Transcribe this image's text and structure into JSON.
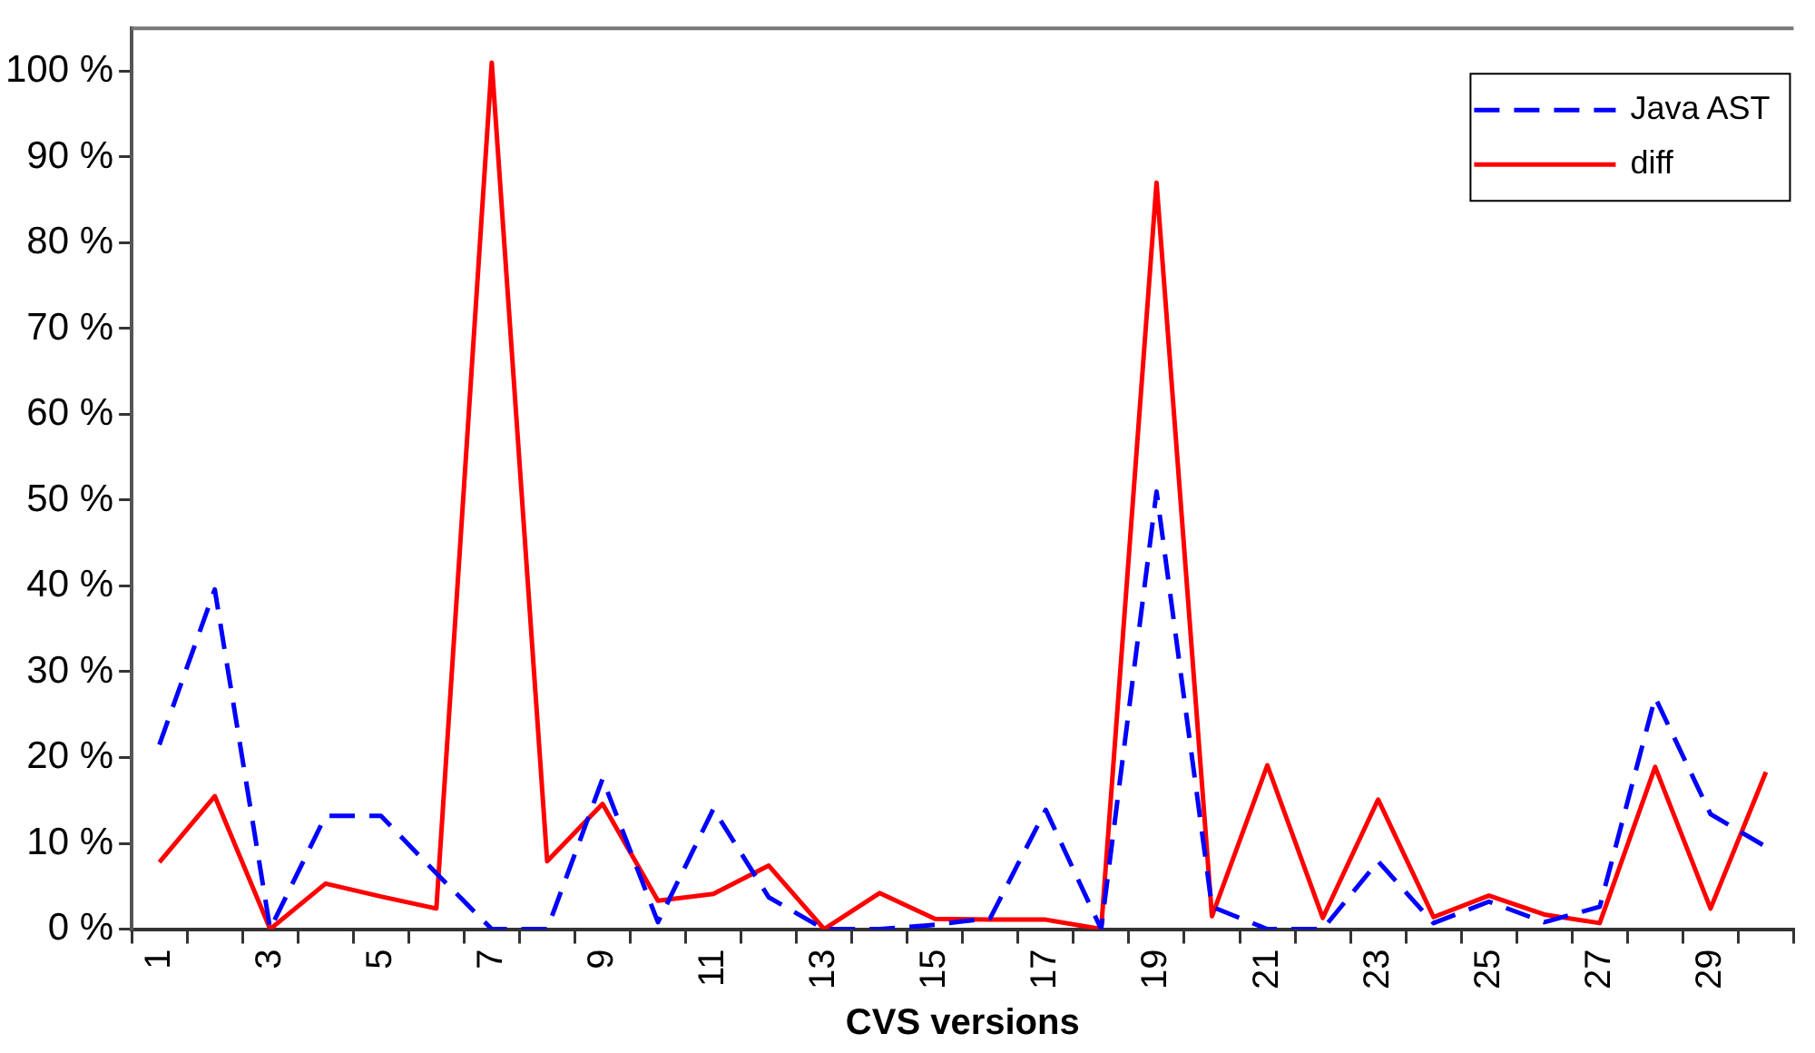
{
  "chart_data": {
    "type": "line",
    "xlabel": "CVS versions",
    "categories": [
      "1",
      null,
      "3",
      null,
      "5",
      null,
      "7",
      null,
      "9",
      null,
      "11",
      null,
      "13",
      null,
      "15",
      null,
      "17",
      null,
      "19",
      null,
      "21",
      null,
      "23",
      null,
      "25",
      null,
      "27",
      null,
      "29",
      null
    ],
    "series": [
      {
        "name": "Java AST",
        "color": "#0000ff",
        "line_style": "dashed",
        "values": [
          21.5,
          39.6,
          0,
          13.2,
          13.2,
          6.5,
          0,
          0,
          17.5,
          0.8,
          14,
          3.7,
          0,
          0,
          0.5,
          1.3,
          13.9,
          0,
          51,
          2.6,
          0,
          0,
          7.9,
          0.7,
          3.2,
          0.8,
          2.6,
          27,
          13.4,
          9.6
        ]
      },
      {
        "name": "diff",
        "color": "#ff0000",
        "line_style": "solid",
        "values": [
          7.8,
          15.5,
          0,
          5.3,
          3.8,
          2.4,
          101,
          7.9,
          14.6,
          3.3,
          4.1,
          7.4,
          0,
          4.2,
          1.2,
          1.1,
          1.1,
          0,
          87,
          1.5,
          19.1,
          1.3,
          15.1,
          1.4,
          3.9,
          1.7,
          0.7,
          18.9,
          2.4,
          18.3
        ]
      }
    ],
    "ylim": [
      0,
      105
    ],
    "yticks": [
      {
        "value": 0,
        "label": "0 %"
      },
      {
        "value": 10,
        "label": "10 %"
      },
      {
        "value": 20,
        "label": "20 %"
      },
      {
        "value": 30,
        "label": "30 %"
      },
      {
        "value": 40,
        "label": "40 %"
      },
      {
        "value": 50,
        "label": "50 %"
      },
      {
        "value": 60,
        "label": "60 %"
      },
      {
        "value": 70,
        "label": "70 %"
      },
      {
        "value": 80,
        "label": "80 %"
      },
      {
        "value": 90,
        "label": "90 %"
      },
      {
        "value": 100,
        "label": "100 %"
      }
    ],
    "grid": false,
    "legend": "top right",
    "marker": "none"
  }
}
